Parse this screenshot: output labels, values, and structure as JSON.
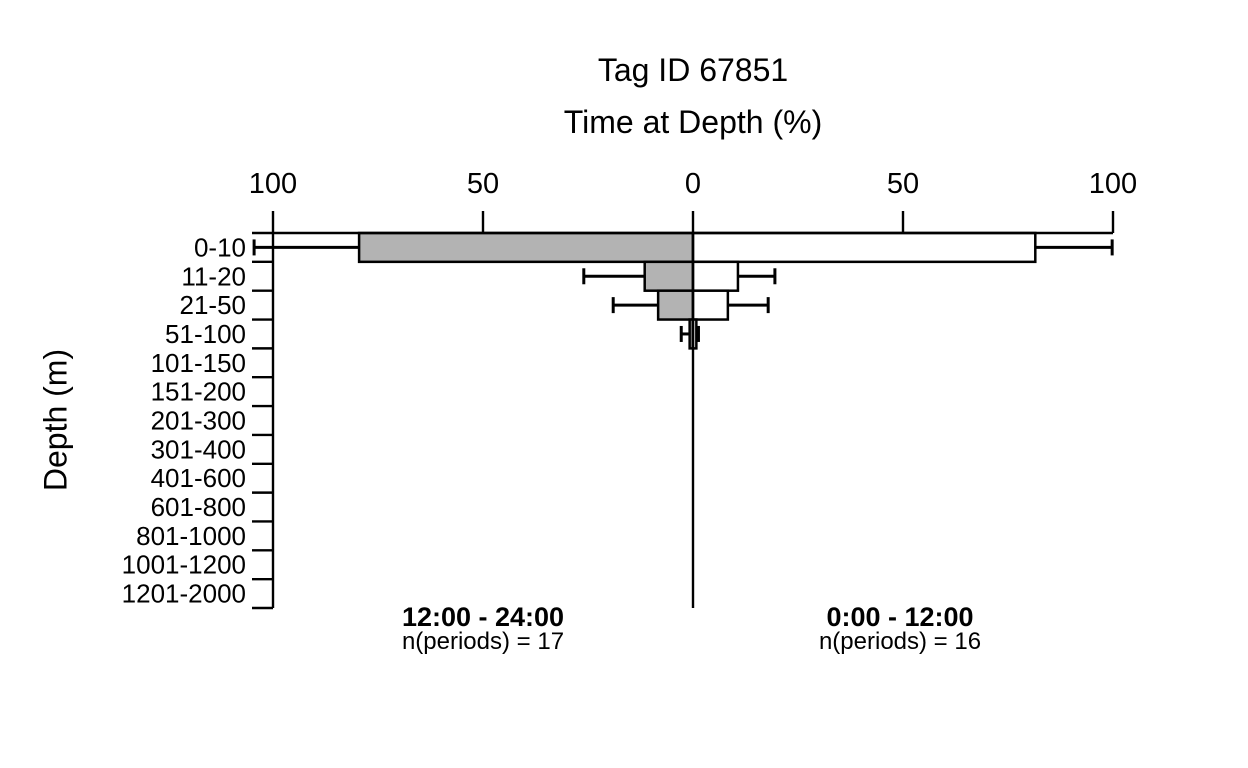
{
  "title": {
    "line1": "Tag ID 67851",
    "line2": "Time at Depth (%)"
  },
  "y_axis_label": "Depth (m)",
  "footers": {
    "left": {
      "period": "12:00 - 24:00",
      "n_label": "n(periods) = 17"
    },
    "right": {
      "period": "0:00 - 12:00",
      "n_label": "n(periods) = 16"
    }
  },
  "colors": {
    "bar_gray": "#b3b3b3",
    "bar_white": "#ffffff",
    "line": "#000000",
    "text": "#000000",
    "background": "#ffffff"
  },
  "chart_data": {
    "type": "bar",
    "layout": "back-to-back horizontal pyramid with error bars",
    "title": "Tag ID 67851",
    "subtitle": "Time at Depth (%)",
    "ylabel": "Depth (m)",
    "x_unit": "percent of time",
    "xlim": [
      -100,
      100
    ],
    "grid": false,
    "legend": false,
    "x_ticks": [
      {
        "pos": -100,
        "label": "100"
      },
      {
        "pos": -50,
        "label": "50"
      },
      {
        "pos": 0,
        "label": "0"
      },
      {
        "pos": 50,
        "label": "50"
      },
      {
        "pos": 100,
        "label": "100"
      }
    ],
    "categories": [
      "0-10",
      "11-20",
      "21-50",
      "51-100",
      "101-150",
      "151-200",
      "201-300",
      "301-400",
      "401-600",
      "601-800",
      "801-1000",
      "1001-1200",
      "1201-2000"
    ],
    "series": [
      {
        "name": "12:00 - 24:00",
        "side": "left",
        "n_periods": 17,
        "fill": "#b3b3b3",
        "values": [
          79.5,
          11.5,
          8.3,
          0.8,
          0,
          0,
          0,
          0,
          0,
          0,
          0,
          0,
          0
        ],
        "error_high": [
          104.5,
          26.0,
          19.0,
          2.8,
          0,
          0,
          0,
          0,
          0,
          0,
          0,
          0,
          0
        ]
      },
      {
        "name": "0:00 - 12:00",
        "side": "right",
        "n_periods": 16,
        "fill": "#ffffff",
        "values": [
          81.5,
          10.7,
          8.3,
          0.8,
          0,
          0,
          0,
          0,
          0,
          0,
          0,
          0,
          0
        ],
        "error_high": [
          99.8,
          19.5,
          17.9,
          1.3,
          0,
          0,
          0,
          0,
          0,
          0,
          0,
          0,
          0
        ]
      }
    ]
  }
}
